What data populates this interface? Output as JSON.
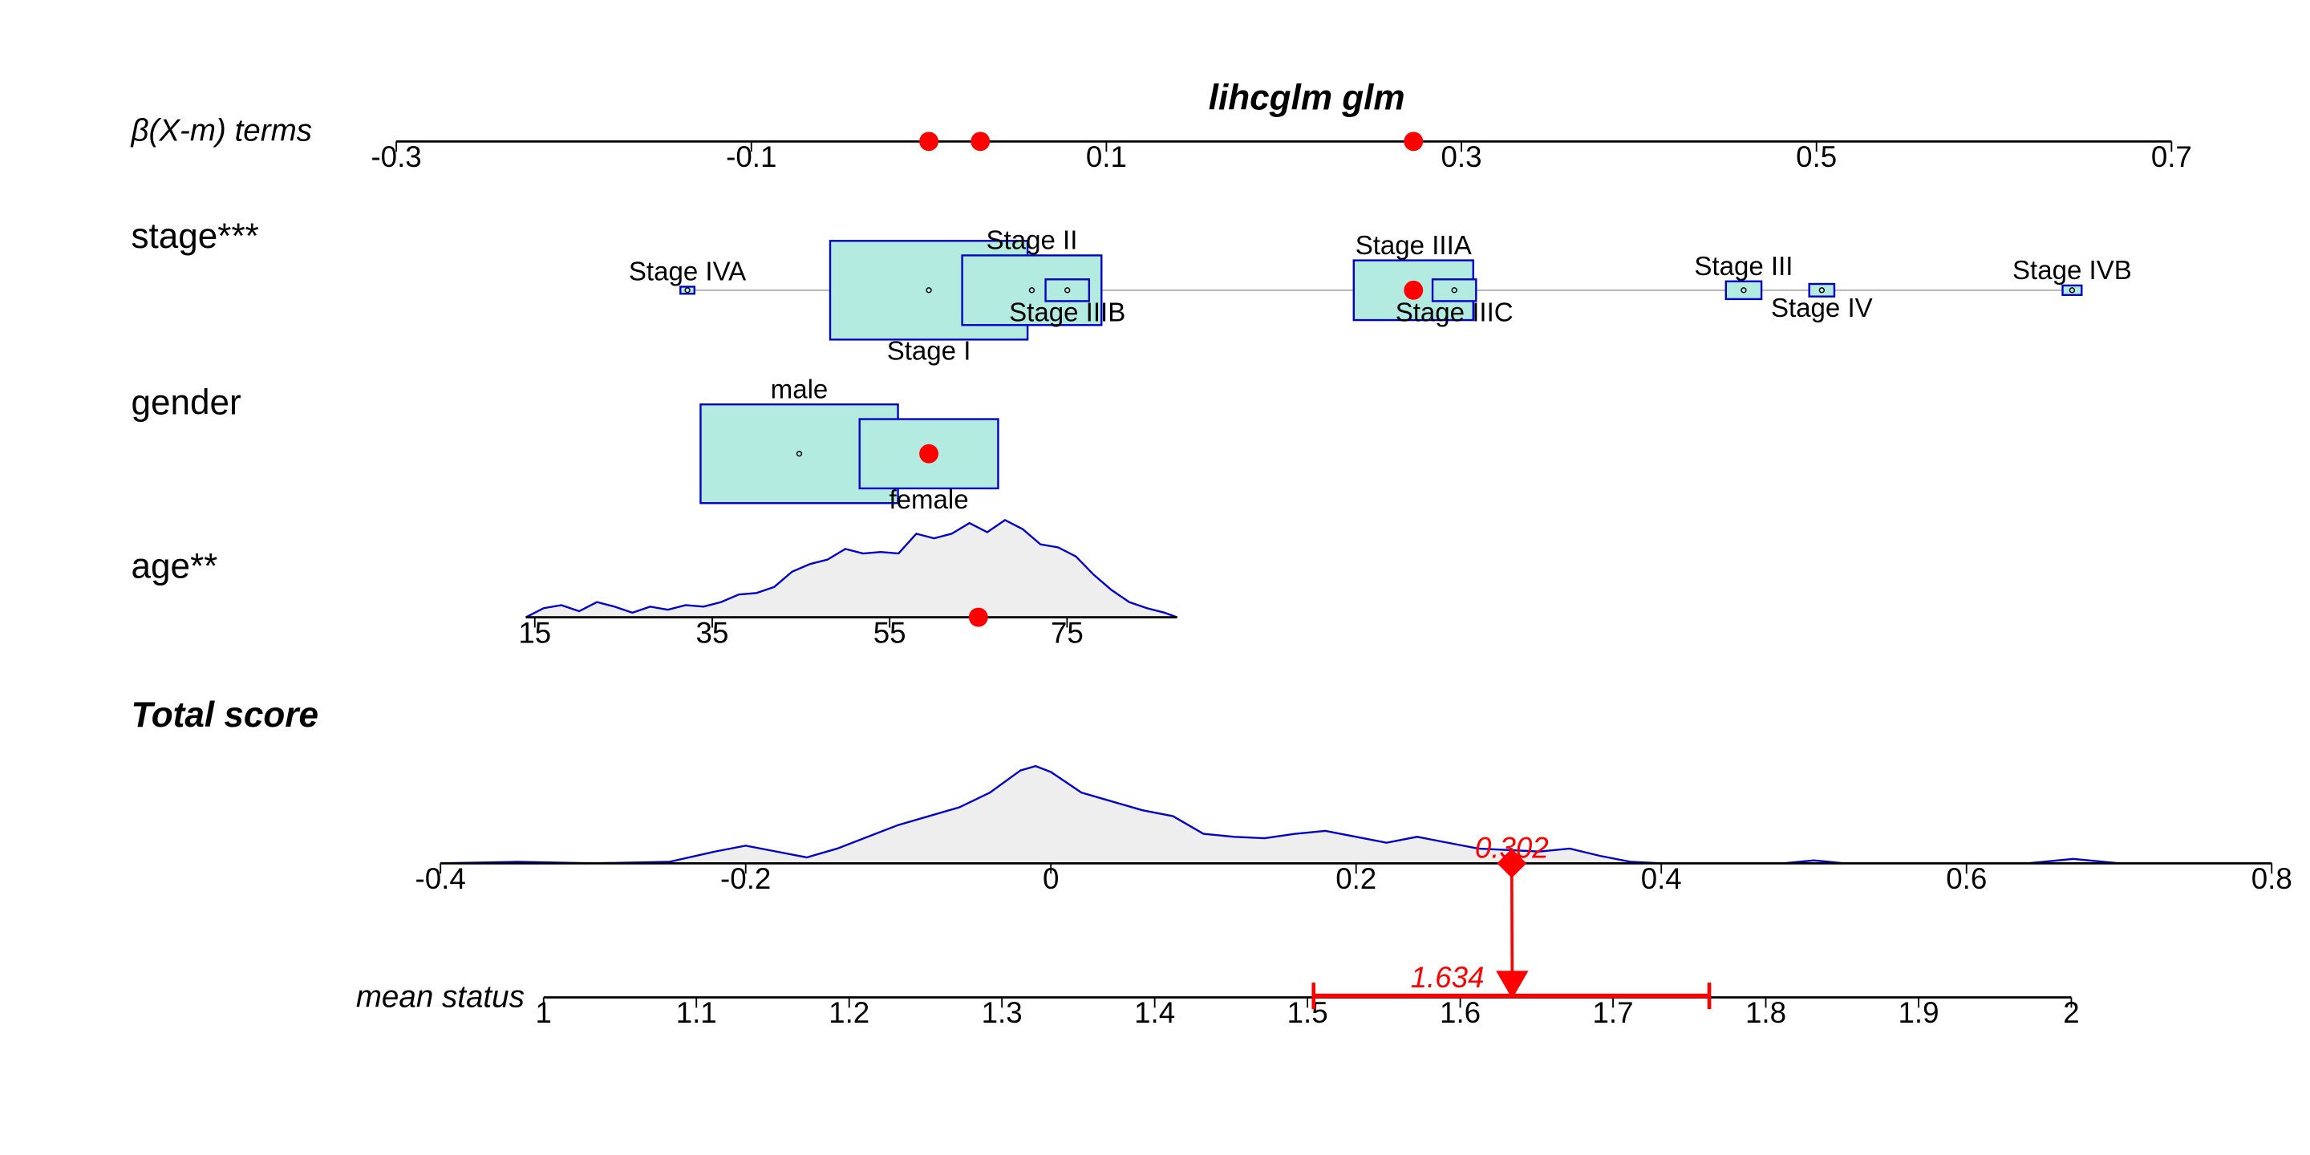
{
  "chart_data": {
    "type": "nomogram",
    "title": "lihcglm glm",
    "beta_axis": {
      "label": "β(X-m) terms",
      "xlim": [
        -0.3,
        0.7
      ],
      "xticks": [
        -0.3,
        -0.1,
        0.1,
        0.3,
        0.5,
        0.7
      ]
    },
    "rows": [
      {
        "label": "stage***",
        "type": "boxes",
        "beta": 0.273,
        "categories": [
          "Stage IVA",
          "Stage I",
          "Stage II",
          "Stage IIIB",
          "Stage IIIA",
          "Stage IIIC",
          "Stage III",
          "Stage IV",
          "Stage IVB"
        ],
        "values": [
          -0.136,
          0.0,
          0.058,
          0.078,
          0.273,
          0.296,
          0.459,
          0.503,
          0.644
        ],
        "freq": [
          0.0025,
          0.494,
          0.246,
          0.024,
          0.181,
          0.024,
          0.016,
          0.008,
          0.0046
        ]
      },
      {
        "label": "gender",
        "type": "boxes",
        "beta": 0.0,
        "categories": [
          "male",
          "female"
        ],
        "values": [
          -0.073,
          0.0
        ],
        "freq": [
          0.67,
          0.33
        ]
      },
      {
        "label": "age**",
        "type": "density",
        "beta": 0.029,
        "value": 65,
        "xlim": [
          14,
          87.4
        ],
        "xticks": [
          15,
          35,
          55,
          75
        ],
        "density_x": [
          14,
          16,
          18,
          20,
          22,
          24,
          26,
          28,
          30,
          32,
          34,
          36,
          38,
          40,
          42,
          44,
          46,
          48,
          50,
          52,
          54,
          56,
          58,
          60,
          62,
          64,
          66,
          68,
          70,
          72,
          74,
          76,
          78,
          80,
          82,
          84,
          86,
          87.4
        ],
        "density": [
          0,
          6,
          8,
          4,
          10,
          7,
          3,
          7,
          5,
          8,
          7,
          10,
          15,
          16,
          20,
          30,
          35,
          38,
          45,
          42,
          43,
          42,
          55,
          52,
          55,
          62,
          56,
          64,
          58,
          48,
          46,
          40,
          28,
          18,
          10,
          6,
          3,
          0
        ]
      }
    ],
    "total_score": {
      "label": "Total score",
      "value": 0.302,
      "xlim": [
        -0.4,
        0.8
      ],
      "xticks": [
        -0.4,
        -0.2,
        0,
        0.2,
        0.4,
        0.6,
        0.8
      ],
      "density_x": [
        -0.4,
        -0.35,
        -0.3,
        -0.25,
        -0.22,
        -0.2,
        -0.18,
        -0.16,
        -0.14,
        -0.12,
        -0.1,
        -0.08,
        -0.06,
        -0.04,
        -0.02,
        -0.01,
        0,
        0.02,
        0.04,
        0.06,
        0.08,
        0.1,
        0.12,
        0.14,
        0.16,
        0.18,
        0.2,
        0.22,
        0.24,
        0.26,
        0.28,
        0.3,
        0.32,
        0.34,
        0.36,
        0.38,
        0.4,
        0.48,
        0.5,
        0.52,
        0.64,
        0.67,
        0.7
      ],
      "density": [
        0,
        1,
        0,
        1,
        8,
        12,
        8,
        4,
        10,
        18,
        26,
        32,
        38,
        48,
        63,
        66,
        62,
        48,
        42,
        36,
        32,
        20,
        18,
        17,
        20,
        22,
        18,
        14,
        18,
        14,
        10,
        9,
        8,
        10,
        5,
        1,
        0,
        0,
        2,
        0,
        0,
        3,
        0
      ]
    },
    "mean_status": {
      "label": "mean status",
      "value": 1.634,
      "ci": [
        1.504,
        1.763
      ],
      "xlim": [
        1,
        2
      ],
      "xticks": [
        1,
        1.1,
        1.2,
        1.3,
        1.4,
        1.5,
        1.6,
        1.7,
        1.8,
        1.9,
        2
      ]
    }
  }
}
